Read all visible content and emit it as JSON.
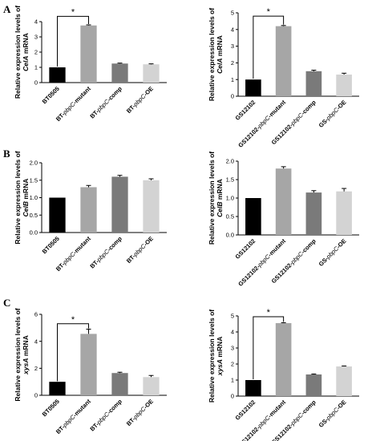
{
  "chart_data": [
    {
      "type": "bar",
      "panel": "A",
      "ylabel": [
        "Relative expression levels of",
        "CelA mRNA"
      ],
      "ylabel_italic": "CelA",
      "ylim": [
        0,
        4
      ],
      "yticks": [
        "0",
        "1",
        "2",
        "3",
        "4"
      ],
      "categories": [
        "BT0505",
        "BT-pbpC-mutant",
        "BT-pbpC-comp",
        "BT-pbpC-OE"
      ],
      "italic_part": "pbpC",
      "values": [
        1.0,
        3.75,
        1.25,
        1.2
      ],
      "errors": [
        0,
        0.04,
        0.03,
        0.03
      ],
      "colors": [
        "#000000",
        "#a6a6a6",
        "#7a7a7a",
        "#d3d3d3"
      ],
      "significance": {
        "from": 0,
        "to": 1,
        "label": "*",
        "level": 4.35
      }
    },
    {
      "type": "bar",
      "panel": "A",
      "ylabel": [
        "Relative expression levels of",
        "CelA mRNA"
      ],
      "ylabel_italic": "CelA",
      "ylim": [
        0,
        5
      ],
      "yticks": [
        "0",
        "1",
        "2",
        "3",
        "4",
        "5"
      ],
      "categories": [
        "GS12102",
        "GS12102-pbpC-mutant",
        "GS12102-pbpC-comp",
        "GS-pbpC-OE"
      ],
      "italic_part": "pbpC",
      "values": [
        1.0,
        4.2,
        1.5,
        1.3
      ],
      "errors": [
        0,
        0.04,
        0.06,
        0.08
      ],
      "colors": [
        "#000000",
        "#a6a6a6",
        "#7a7a7a",
        "#d3d3d3"
      ],
      "significance": {
        "from": 0,
        "to": 1,
        "label": "*",
        "level": 4.8
      }
    },
    {
      "type": "bar",
      "panel": "B",
      "ylabel": [
        "Relative expression levels of",
        "CelB mRNA"
      ],
      "ylabel_italic": "CelB",
      "ylim": [
        0,
        2.0
      ],
      "yticks": [
        "0.0",
        "0.5",
        "1.0",
        "1.5",
        "2.0"
      ],
      "categories": [
        "BT0505",
        "BT-pbpC-mutant",
        "BT-pbpC-comp",
        "BT-pbpC-OE"
      ],
      "italic_part": "pbpC",
      "values": [
        1.0,
        1.3,
        1.6,
        1.5
      ],
      "errors": [
        0,
        0.05,
        0.04,
        0.04
      ],
      "colors": [
        "#000000",
        "#a6a6a6",
        "#7a7a7a",
        "#d3d3d3"
      ]
    },
    {
      "type": "bar",
      "panel": "B",
      "ylabel": [
        "Relative expression levels of",
        "CelB mRNA"
      ],
      "ylabel_italic": "CelB",
      "ylim": [
        0,
        2.0
      ],
      "yticks": [
        "0.0",
        "0.5",
        "1.0",
        "1.5",
        "2.0"
      ],
      "categories": [
        "GS12102",
        "GS12102-pbpC-mutant",
        "GS12102-pbpC-comp",
        "GS-pbpC-OE"
      ],
      "italic_part": "pbpC",
      "values": [
        1.0,
        1.8,
        1.15,
        1.18
      ],
      "errors": [
        0,
        0.05,
        0.05,
        0.08
      ],
      "colors": [
        "#000000",
        "#a6a6a6",
        "#7a7a7a",
        "#d3d3d3"
      ]
    },
    {
      "type": "bar",
      "panel": "C",
      "ylabel": [
        "Relative expression levels of",
        "xysA mRNA"
      ],
      "ylabel_italic": "xysA",
      "ylim": [
        0,
        6
      ],
      "yticks": [
        "0",
        "2",
        "4",
        "6"
      ],
      "categories": [
        "BT0505",
        "BT-pbpC-mutant",
        "BT-pbpC-comp",
        "BT-pbpC-OE"
      ],
      "italic_part": "pbpC",
      "values": [
        1.0,
        4.55,
        1.65,
        1.35
      ],
      "errors": [
        0,
        0.35,
        0.06,
        0.12
      ],
      "colors": [
        "#000000",
        "#a6a6a6",
        "#7a7a7a",
        "#d3d3d3"
      ],
      "significance": {
        "from": 0,
        "to": 1,
        "label": "*",
        "level": 5.3
      }
    },
    {
      "type": "bar",
      "panel": "C",
      "ylabel": [
        "Relative expression levels of",
        "xysA mRNA"
      ],
      "ylabel_italic": "xysA",
      "ylim": [
        0,
        5
      ],
      "yticks": [
        "0",
        "1",
        "2",
        "3",
        "4",
        "5"
      ],
      "categories": [
        "GS12102",
        "GS12102-pbpC-mutant",
        "GS12102-pbpC-comp",
        "GS-pbpC-OE"
      ],
      "italic_part": "pbpC",
      "values": [
        1.0,
        4.55,
        1.35,
        1.85
      ],
      "errors": [
        0,
        0.03,
        0.03,
        0.03
      ],
      "colors": [
        "#000000",
        "#a6a6a6",
        "#7a7a7a",
        "#d3d3d3"
      ],
      "significance": {
        "from": 0,
        "to": 1,
        "label": "*",
        "level": 4.95
      }
    }
  ],
  "panel_labels": [
    "A",
    "B",
    "C"
  ]
}
